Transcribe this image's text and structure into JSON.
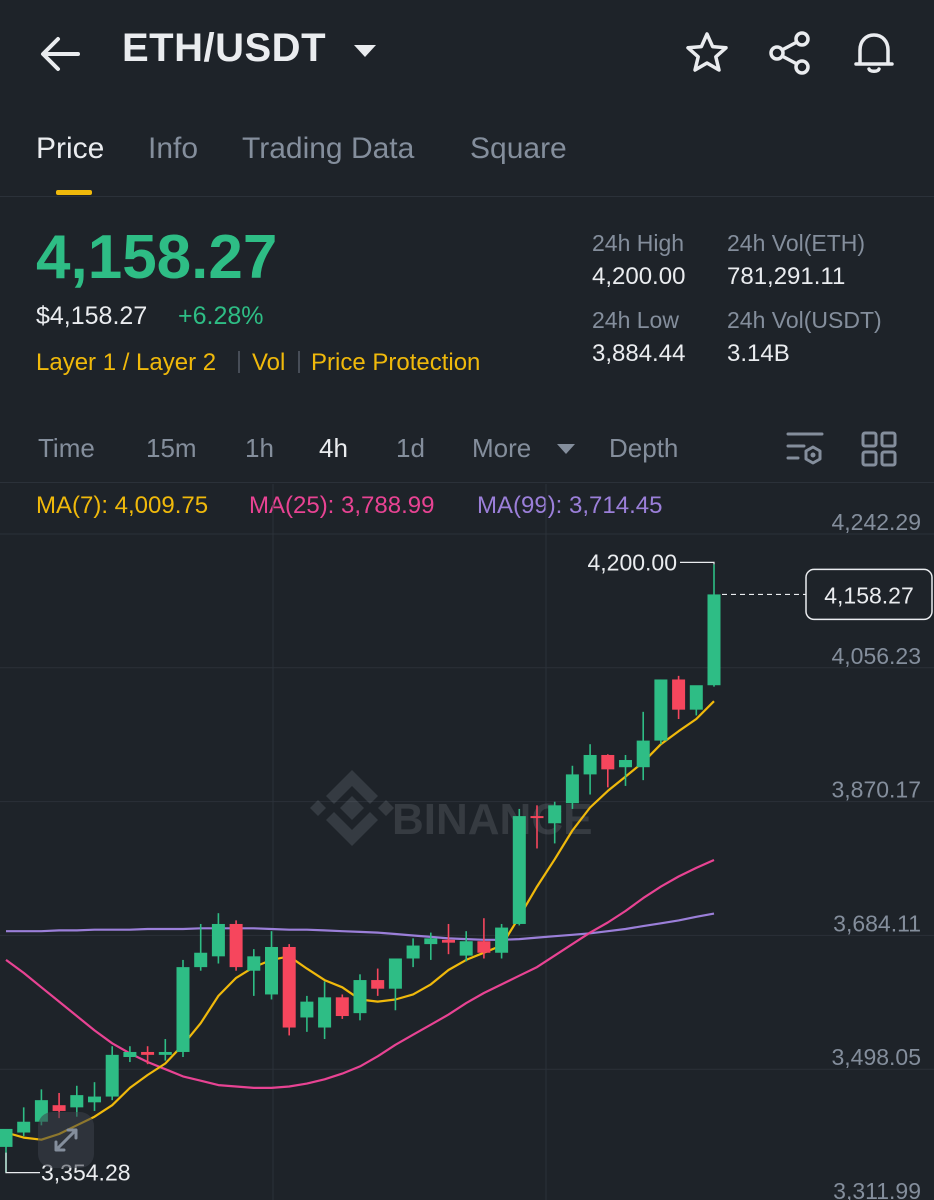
{
  "header": {
    "title": "ETH/USDT",
    "icons": [
      "back-arrow-icon",
      "caret-down-icon",
      "star-icon",
      "share-icon",
      "bell-icon"
    ]
  },
  "tabs": [
    {
      "label": "Price",
      "active": true
    },
    {
      "label": "Info",
      "active": false
    },
    {
      "label": "Trading Data",
      "active": false
    },
    {
      "label": "Square",
      "active": false
    }
  ],
  "ticker": {
    "last_price": "4,158.27",
    "usd_price": "$4,158.27",
    "change_pct": "+6.28%",
    "tags": [
      "Layer 1 / Layer 2",
      "Vol",
      "Price Protection"
    ],
    "stats": {
      "high_label": "24h High",
      "high_value": "4,200.00",
      "vol_base_label": "24h Vol(ETH)",
      "vol_base_value": "781,291.11",
      "low_label": "24h Low",
      "low_value": "3,884.44",
      "vol_quote_label": "24h Vol(USDT)",
      "vol_quote_value": "3.14B"
    }
  },
  "intervals": [
    {
      "label": "Time",
      "active": false
    },
    {
      "label": "15m",
      "active": false
    },
    {
      "label": "1h",
      "active": false
    },
    {
      "label": "4h",
      "active": true
    },
    {
      "label": "1d",
      "active": false
    },
    {
      "label": "More",
      "active": false
    },
    {
      "label": "Depth",
      "active": false
    }
  ],
  "ma": {
    "ma7": "MA(7): 4,009.75",
    "ma25": "MA(25): 3,788.99",
    "ma99": "MA(99): 3,714.45"
  },
  "colors": {
    "up": "#2ebd85",
    "down": "#f6465d",
    "accent": "#f0b90b",
    "ma7": "#f0b90b",
    "ma25": "#e84393",
    "ma99": "#9b7fd9"
  },
  "chart_data": {
    "type": "candlestick",
    "y_ticks": [
      "4,242.29",
      "4,056.23",
      "3,870.17",
      "3,684.11",
      "3,498.05",
      "3,311.99"
    ],
    "ylim": [
      3311.99,
      4242.29
    ],
    "high_label": "4,200.00",
    "low_label": "3,354.28",
    "last_price_label": "4,158.27",
    "watermark": "BINANCE",
    "candles": [
      {
        "o": 3390,
        "h": 3410,
        "l": 3354.28,
        "c": 3415
      },
      {
        "o": 3410,
        "h": 3445,
        "l": 3405,
        "c": 3425
      },
      {
        "o": 3425,
        "h": 3470,
        "l": 3420,
        "c": 3455
      },
      {
        "o": 3448,
        "h": 3465,
        "l": 3430,
        "c": 3440
      },
      {
        "o": 3445,
        "h": 3475,
        "l": 3432,
        "c": 3462
      },
      {
        "o": 3452,
        "h": 3480,
        "l": 3440,
        "c": 3460
      },
      {
        "o": 3460,
        "h": 3530,
        "l": 3455,
        "c": 3518
      },
      {
        "o": 3515,
        "h": 3530,
        "l": 3508,
        "c": 3522
      },
      {
        "o": 3522,
        "h": 3530,
        "l": 3505,
        "c": 3518
      },
      {
        "o": 3518,
        "h": 3540,
        "l": 3510,
        "c": 3522
      },
      {
        "o": 3522,
        "h": 3650,
        "l": 3515,
        "c": 3640
      },
      {
        "o": 3640,
        "h": 3700,
        "l": 3635,
        "c": 3660
      },
      {
        "o": 3655,
        "h": 3715,
        "l": 3645,
        "c": 3700
      },
      {
        "o": 3700,
        "h": 3705,
        "l": 3635,
        "c": 3640
      },
      {
        "o": 3635,
        "h": 3665,
        "l": 3600,
        "c": 3655
      },
      {
        "o": 3602,
        "h": 3690,
        "l": 3595,
        "c": 3668
      },
      {
        "o": 3668,
        "h": 3672,
        "l": 3545,
        "c": 3556
      },
      {
        "o": 3570,
        "h": 3600,
        "l": 3550,
        "c": 3592
      },
      {
        "o": 3556,
        "h": 3620,
        "l": 3540,
        "c": 3598
      },
      {
        "o": 3598,
        "h": 3602,
        "l": 3568,
        "c": 3572
      },
      {
        "o": 3576,
        "h": 3630,
        "l": 3566,
        "c": 3622
      },
      {
        "o": 3622,
        "h": 3638,
        "l": 3600,
        "c": 3610
      },
      {
        "o": 3610,
        "h": 3650,
        "l": 3580,
        "c": 3652
      },
      {
        "o": 3652,
        "h": 3680,
        "l": 3640,
        "c": 3670
      },
      {
        "o": 3672,
        "h": 3688,
        "l": 3650,
        "c": 3680
      },
      {
        "o": 3678,
        "h": 3700,
        "l": 3658,
        "c": 3674
      },
      {
        "o": 3656,
        "h": 3690,
        "l": 3648,
        "c": 3676
      },
      {
        "o": 3676,
        "h": 3708,
        "l": 3652,
        "c": 3660
      },
      {
        "o": 3660,
        "h": 3700,
        "l": 3652,
        "c": 3695
      },
      {
        "o": 3700,
        "h": 3860,
        "l": 3698,
        "c": 3850
      },
      {
        "o": 3850,
        "h": 3865,
        "l": 3805,
        "c": 3848
      },
      {
        "o": 3840,
        "h": 3870,
        "l": 3812,
        "c": 3865
      },
      {
        "o": 3868,
        "h": 3920,
        "l": 3860,
        "c": 3908
      },
      {
        "o": 3908,
        "h": 3950,
        "l": 3880,
        "c": 3935
      },
      {
        "o": 3935,
        "h": 3936,
        "l": 3890,
        "c": 3915
      },
      {
        "o": 3918,
        "h": 3935,
        "l": 3892,
        "c": 3928
      },
      {
        "o": 3918,
        "h": 3995,
        "l": 3900,
        "c": 3955
      },
      {
        "o": 3955,
        "h": 4040,
        "l": 3950,
        "c": 4040
      },
      {
        "o": 4040,
        "h": 4045,
        "l": 3985,
        "c": 3998
      },
      {
        "o": 3998,
        "h": 4030,
        "l": 3990,
        "c": 4032
      },
      {
        "o": 4032,
        "h": 4200.0,
        "l": 4030,
        "c": 4158.27
      }
    ],
    "ma7_points": [
      3410,
      3403,
      3400,
      3408,
      3420,
      3432,
      3448,
      3472,
      3490,
      3506,
      3532,
      3562,
      3600,
      3625,
      3640,
      3650,
      3655,
      3638,
      3622,
      3612,
      3595,
      3592,
      3595,
      3602,
      3616,
      3636,
      3650,
      3660,
      3670,
      3710,
      3752,
      3790,
      3830,
      3862,
      3885,
      3905,
      3925,
      3950,
      3968,
      3985,
      4009.75
    ],
    "ma25_points": [
      3650,
      3632,
      3612,
      3592,
      3572,
      3552,
      3534,
      3520,
      3508,
      3498,
      3488,
      3482,
      3476,
      3474,
      3472,
      3472,
      3474,
      3478,
      3484,
      3492,
      3502,
      3516,
      3532,
      3546,
      3560,
      3574,
      3590,
      3604,
      3616,
      3628,
      3640,
      3656,
      3672,
      3688,
      3702,
      3718,
      3736,
      3752,
      3766,
      3778,
      3788.99
    ],
    "ma99_points": [
      3690,
      3690,
      3690,
      3691,
      3691,
      3692,
      3692,
      3692,
      3693,
      3693,
      3693,
      3694,
      3694,
      3694,
      3694,
      3693,
      3692,
      3692,
      3691,
      3690,
      3689,
      3688,
      3686,
      3684,
      3682,
      3680,
      3679,
      3678,
      3678,
      3679,
      3681,
      3683,
      3685,
      3687,
      3690,
      3693,
      3697,
      3701,
      3705,
      3710,
      3714.45
    ]
  }
}
